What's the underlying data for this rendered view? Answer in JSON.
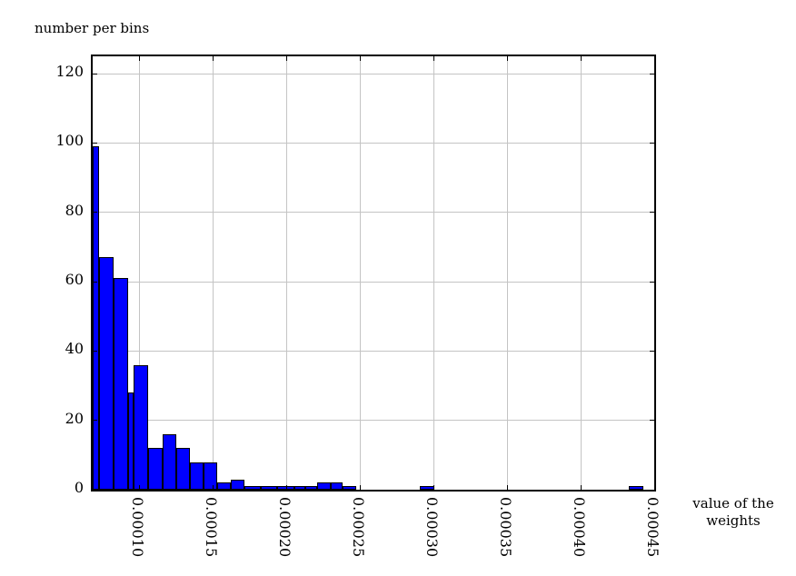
{
  "title": "number per bins",
  "xlabel": "value of the weights",
  "chart_data": {
    "type": "bar",
    "subtype": "histogram",
    "title": "number per bins",
    "xlabel": "value of the weights",
    "ylabel": "number per bins",
    "xlim": [
      6.82e-05,
      0.00045
    ],
    "ylim": [
      0,
      125
    ],
    "grid": true,
    "legend": "none",
    "bar_color": "#0000ff",
    "bar_edge_color": "#000000",
    "grid_color": "#c4c4c4",
    "x_ticks": [
      0.0001,
      0.00015,
      0.0002,
      0.00025,
      0.0003,
      0.00035,
      0.0004,
      0.00045
    ],
    "x_tick_labels": [
      "0.00010",
      "0.00015",
      "0.00020",
      "0.00025",
      "0.00030",
      "0.00035",
      "0.00040",
      "0.00045"
    ],
    "y_ticks": [
      0,
      20,
      40,
      60,
      80,
      100,
      120
    ],
    "y_tick_labels": [
      "0",
      "20",
      "40",
      "60",
      "80",
      "100",
      "120"
    ],
    "bins": [
      {
        "x0": 6.82e-05,
        "x1": 7.22e-05,
        "count": 99
      },
      {
        "x0": 7.22e-05,
        "x1": 8.26e-05,
        "count": 67
      },
      {
        "x0": 8.26e-05,
        "x1": 9.25e-05,
        "count": 61
      },
      {
        "x0": 9.25e-05,
        "x1": 9.61e-05,
        "count": 28
      },
      {
        "x0": 9.61e-05,
        "x1": 0.0001057,
        "count": 36
      },
      {
        "x0": 0.0001057,
        "x1": 0.0001156,
        "count": 12
      },
      {
        "x0": 0.0001156,
        "x1": 0.0001248,
        "count": 16
      },
      {
        "x0": 0.0001248,
        "x1": 0.0001341,
        "count": 12
      },
      {
        "x0": 0.0001341,
        "x1": 0.0001433,
        "count": 8
      },
      {
        "x0": 0.0001433,
        "x1": 0.0001526,
        "count": 8
      },
      {
        "x0": 0.0001526,
        "x1": 0.0001619,
        "count": 2
      },
      {
        "x0": 0.0001619,
        "x1": 0.0001711,
        "count": 3
      },
      {
        "x0": 0.0001711,
        "x1": 0.0001824,
        "count": 1
      },
      {
        "x0": 0.0001824,
        "x1": 0.0001937,
        "count": 1
      },
      {
        "x0": 0.0001937,
        "x1": 0.0002051,
        "count": 1
      },
      {
        "x0": 0.0002051,
        "x1": 0.000213,
        "count": 1
      },
      {
        "x0": 0.000213,
        "x1": 0.0002209,
        "count": 1
      },
      {
        "x0": 0.0002209,
        "x1": 0.0002298,
        "count": 2
      },
      {
        "x0": 0.0002298,
        "x1": 0.000238,
        "count": 2
      },
      {
        "x0": 0.000238,
        "x1": 0.0002472,
        "count": 1
      },
      {
        "x0": 0.0002904,
        "x1": 0.0003007,
        "count": 1
      },
      {
        "x0": 0.0004324,
        "x1": 0.0004428,
        "count": 1
      }
    ]
  }
}
